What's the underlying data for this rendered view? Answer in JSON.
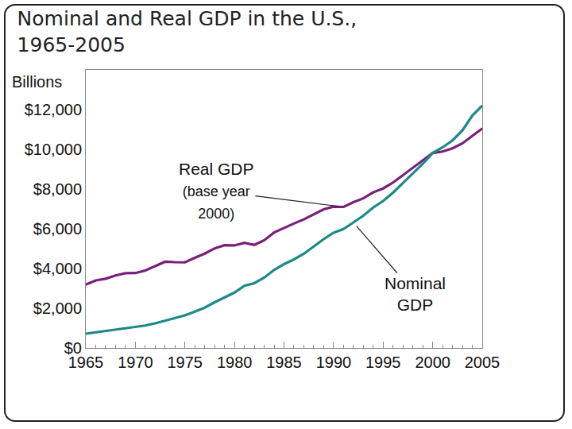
{
  "chart_data": {
    "type": "line",
    "title": "Nominal and Real GDP in the U.S.,\n1965-2005",
    "y_label": "Billions",
    "x": [
      1965,
      1966,
      1967,
      1968,
      1969,
      1970,
      1971,
      1972,
      1973,
      1974,
      1975,
      1976,
      1977,
      1978,
      1979,
      1980,
      1981,
      1982,
      1983,
      1984,
      1985,
      1986,
      1987,
      1988,
      1989,
      1990,
      1991,
      1992,
      1993,
      1994,
      1995,
      1996,
      1997,
      1998,
      1999,
      2000,
      2001,
      2002,
      2003,
      2004,
      2005
    ],
    "series": [
      {
        "name": "Real GDP\n(base year\n2000)",
        "color": "#7b1f7d",
        "values": [
          3191,
          3399,
          3485,
          3653,
          3765,
          3772,
          3899,
          4105,
          4342,
          4320,
          4311,
          4541,
          4751,
          5015,
          5173,
          5162,
          5292,
          5189,
          5424,
          5814,
          6054,
          6264,
          6475,
          6743,
          6981,
          7113,
          7101,
          7337,
          7533,
          7836,
          8032,
          8329,
          8704,
          9067,
          9470,
          9817,
          9891,
          10049,
          10301,
          10676,
          11050
        ]
      },
      {
        "name": "Nominal\nGDP",
        "color": "#1b8a86",
        "values": [
          720,
          790,
          830,
          910,
          990,
          1040,
          1130,
          1240,
          1380,
          1500,
          1640,
          1830,
          2030,
          2300,
          2560,
          2790,
          3130,
          3260,
          3540,
          3930,
          4220,
          4460,
          4740,
          5100,
          5480,
          5800,
          5990,
          6320,
          6660,
          7070,
          7400,
          7820,
          8300,
          8750,
          9270,
          9817,
          10100,
          10450,
          10950,
          11700,
          12200
        ]
      }
    ],
    "xlim": [
      1965,
      2005
    ],
    "xticks": [
      1965,
      1970,
      1975,
      1980,
      1985,
      1990,
      1995,
      2000,
      2005
    ],
    "ylim": [
      0,
      14000
    ],
    "yticks": [
      {
        "value": 0,
        "label": "$0"
      },
      {
        "value": 2000,
        "label": "$2,000"
      },
      {
        "value": 4000,
        "label": "$4,000"
      },
      {
        "value": 6000,
        "label": "$6,000"
      },
      {
        "value": 8000,
        "label": "$8,000"
      },
      {
        "value": 10000,
        "label": "$10,000"
      },
      {
        "value": 12000,
        "label": "$12,000"
      }
    ],
    "grid": false
  }
}
